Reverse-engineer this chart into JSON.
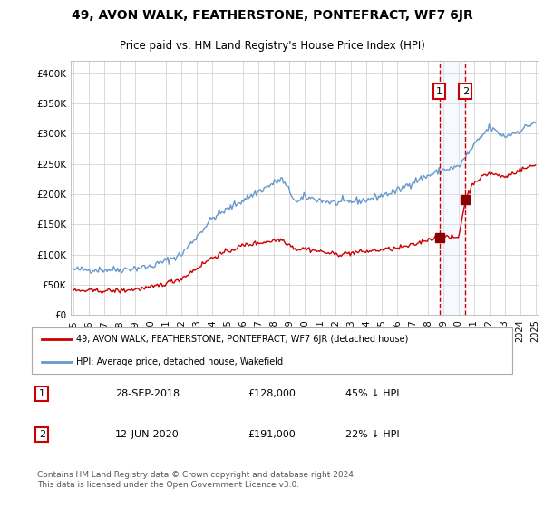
{
  "title": "49, AVON WALK, FEATHERSTONE, PONTEFRACT, WF7 6JR",
  "subtitle": "Price paid vs. HM Land Registry's House Price Index (HPI)",
  "legend_line1": "49, AVON WALK, FEATHERSTONE, PONTEFRACT, WF7 6JR (detached house)",
  "legend_line2": "HPI: Average price, detached house, Wakefield",
  "transaction1_date": "28-SEP-2018",
  "transaction1_price": "£128,000",
  "transaction1_hpi": "45% ↓ HPI",
  "transaction2_date": "12-JUN-2020",
  "transaction2_price": "£191,000",
  "transaction2_hpi": "22% ↓ HPI",
  "footer": "Contains HM Land Registry data © Crown copyright and database right 2024.\nThis data is licensed under the Open Government Licence v3.0.",
  "red_color": "#cc0000",
  "blue_color": "#6699cc",
  "background_color": "#ffffff",
  "grid_color": "#cccccc",
  "ylim": [
    0,
    420000
  ],
  "year_start": 1995,
  "year_end": 2025,
  "transaction1_year": 2018.75,
  "transaction2_year": 2020.45,
  "transaction1_value_red": 128000,
  "transaction2_value_red": 191000,
  "highlight_color": "#ddeeff"
}
